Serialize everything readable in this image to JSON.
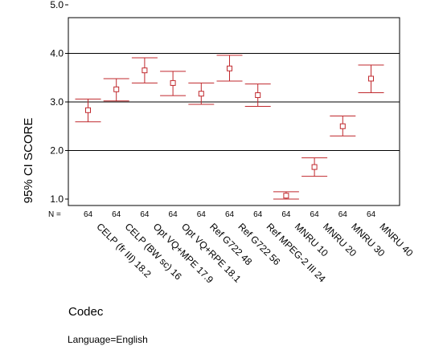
{
  "chart_data": {
    "type": "errorbar",
    "ylabel": "95% CI SCORE",
    "xlabel": "Codec",
    "footer": "Language=English",
    "n_label": "N =",
    "ylim": [
      1.0,
      5.0
    ],
    "y_ticks": [
      "5.0",
      "4.0",
      "3.0",
      "2.0",
      "1.0"
    ],
    "y_tick_values": [
      5.0,
      4.0,
      3.0,
      2.0,
      1.0
    ],
    "grid_lines": [
      4.0,
      3.0,
      2.0
    ],
    "colors": {
      "marker": "#c0282d",
      "grid": "#000000"
    },
    "categories": [
      "CELP (fr III) 18.2",
      "CELP (BW sc) 16",
      "Opt VQ+MPE 17.9",
      "Opt VQ+RPE 18.1",
      "Ref G722 48",
      "Ref G722 56",
      "Ref MPEG-2 III 24",
      "MNRU 10",
      "MNRU 20",
      "MNRU 30",
      "MNRU 40"
    ],
    "n": [
      "64",
      "64",
      "64",
      "64",
      "64",
      "64",
      "64",
      "64",
      "64",
      "64",
      "64"
    ],
    "mean": [
      2.83,
      3.26,
      3.65,
      3.39,
      3.17,
      3.69,
      3.14,
      1.07,
      1.66,
      2.5,
      3.48
    ],
    "lower": [
      2.59,
      3.02,
      3.39,
      3.13,
      2.95,
      3.43,
      2.91,
      1.0,
      1.47,
      2.3,
      3.19
    ],
    "upper": [
      3.06,
      3.48,
      3.91,
      3.63,
      3.39,
      3.96,
      3.37,
      1.15,
      1.85,
      2.71,
      3.76
    ]
  }
}
